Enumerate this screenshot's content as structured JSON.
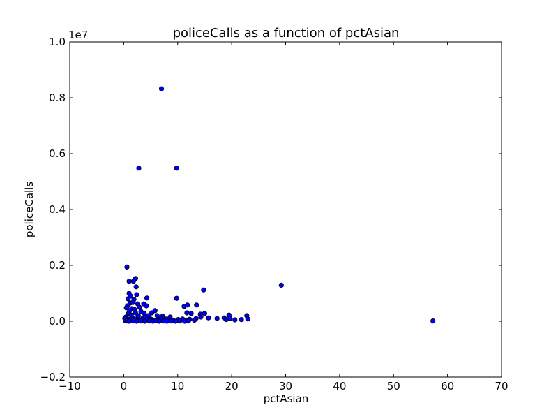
{
  "chart_data": {
    "type": "scatter",
    "title": "policeCalls as a function of pctAsian",
    "xlabel": "pctAsian",
    "ylabel": "policeCalls",
    "y_offset_label": "1e7",
    "xlim": [
      -10,
      70
    ],
    "ylim": [
      -0.2,
      1.0
    ],
    "y_scale_factor": 10000000,
    "grid": false,
    "legend": "none",
    "marker_color": "#0000ff",
    "marker_edge": "#000000",
    "x_ticks": [
      -10,
      0,
      10,
      20,
      30,
      40,
      50,
      60,
      70
    ],
    "x_tick_labels": [
      "−10",
      "0",
      "10",
      "20",
      "30",
      "40",
      "50",
      "60",
      "70"
    ],
    "y_ticks": [
      -0.2,
      0.0,
      0.2,
      0.4,
      0.6,
      0.8,
      1.0
    ],
    "y_tick_labels": [
      "−0.2",
      "0.0",
      "0.2",
      "0.4",
      "0.6",
      "0.8",
      "1.0"
    ],
    "points": [
      [
        7.0,
        0.832
      ],
      [
        2.8,
        0.548
      ],
      [
        9.8,
        0.548
      ],
      [
        0.6,
        0.194
      ],
      [
        2.2,
        0.153
      ],
      [
        1.0,
        0.143
      ],
      [
        1.8,
        0.143
      ],
      [
        2.3,
        0.123
      ],
      [
        29.2,
        0.129
      ],
      [
        14.8,
        0.112
      ],
      [
        1.0,
        0.1
      ],
      [
        1.3,
        0.09
      ],
      [
        2.4,
        0.095
      ],
      [
        4.3,
        0.083
      ],
      [
        9.8,
        0.082
      ],
      [
        0.8,
        0.08
      ],
      [
        1.9,
        0.078
      ],
      [
        1.2,
        0.065
      ],
      [
        1.7,
        0.067
      ],
      [
        2.6,
        0.062
      ],
      [
        0.7,
        0.055
      ],
      [
        3.7,
        0.062
      ],
      [
        11.2,
        0.053
      ],
      [
        11.8,
        0.058
      ],
      [
        13.5,
        0.058
      ],
      [
        0.5,
        0.048
      ],
      [
        1.5,
        0.045
      ],
      [
        2.9,
        0.05
      ],
      [
        4.2,
        0.055
      ],
      [
        1.1,
        0.038
      ],
      [
        2.0,
        0.042
      ],
      [
        3.2,
        0.035
      ],
      [
        5.8,
        0.038
      ],
      [
        5.2,
        0.03
      ],
      [
        0.9,
        0.028
      ],
      [
        2.2,
        0.03
      ],
      [
        3.8,
        0.028
      ],
      [
        11.7,
        0.03
      ],
      [
        12.5,
        0.028
      ],
      [
        14.2,
        0.025
      ],
      [
        15.0,
        0.028
      ],
      [
        1.4,
        0.022
      ],
      [
        2.7,
        0.02
      ],
      [
        4.6,
        0.02
      ],
      [
        6.2,
        0.02
      ],
      [
        7.2,
        0.018
      ],
      [
        8.6,
        0.015
      ],
      [
        0.4,
        0.015
      ],
      [
        1.6,
        0.012
      ],
      [
        3.5,
        0.01
      ],
      [
        4.1,
        0.012
      ],
      [
        6.8,
        0.012
      ],
      [
        13.4,
        0.01
      ],
      [
        14.3,
        0.015
      ],
      [
        15.7,
        0.012
      ],
      [
        17.3,
        0.01
      ],
      [
        18.6,
        0.012
      ],
      [
        19.5,
        0.022
      ],
      [
        22.8,
        0.02
      ],
      [
        0.2,
        0.01
      ],
      [
        0.8,
        0.008
      ],
      [
        1.3,
        0.006
      ],
      [
        2.1,
        0.008
      ],
      [
        2.9,
        0.005
      ],
      [
        3.4,
        0.004
      ],
      [
        4.4,
        0.005
      ],
      [
        5.0,
        0.008
      ],
      [
        5.6,
        0.004
      ],
      [
        6.4,
        0.006
      ],
      [
        7.0,
        0.005
      ],
      [
        7.8,
        0.008
      ],
      [
        8.3,
        0.004
      ],
      [
        9.2,
        0.003
      ],
      [
        10.1,
        0.006
      ],
      [
        10.9,
        0.008
      ],
      [
        11.6,
        0.004
      ],
      [
        12.2,
        0.007
      ],
      [
        13.1,
        0.004
      ],
      [
        19.0,
        0.006
      ],
      [
        19.7,
        0.01
      ],
      [
        20.6,
        0.005
      ],
      [
        21.8,
        0.006
      ],
      [
        23.0,
        0.008
      ],
      [
        0.3,
        0.002
      ],
      [
        0.6,
        0.001
      ],
      [
        1.0,
        0.0
      ],
      [
        1.8,
        0.001
      ],
      [
        2.4,
        0.0
      ],
      [
        3.1,
        0.001
      ],
      [
        3.9,
        0.0
      ],
      [
        4.8,
        0.001
      ],
      [
        5.4,
        0.0
      ],
      [
        6.0,
        0.001
      ],
      [
        6.6,
        0.0
      ],
      [
        7.4,
        0.001
      ],
      [
        8.0,
        0.0
      ],
      [
        8.8,
        0.001
      ],
      [
        9.6,
        0.0
      ],
      [
        10.4,
        0.001
      ],
      [
        11.3,
        0.0
      ],
      [
        12.0,
        0.001
      ],
      [
        57.3,
        0.001
      ]
    ]
  }
}
